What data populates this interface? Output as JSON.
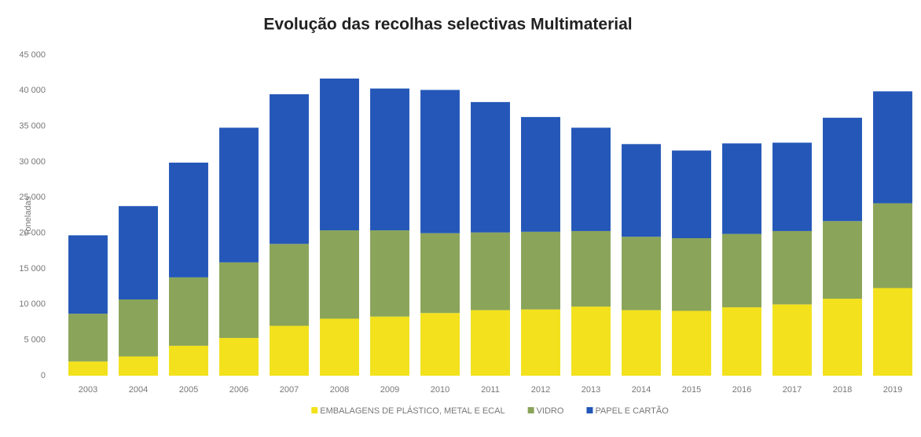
{
  "chart_data": {
    "type": "stacked_bar",
    "title": "Evolução das recolhas selectivas Multimaterial",
    "y_label": "Toneladas",
    "categories": [
      "2003",
      "2004",
      "2005",
      "2006",
      "2007",
      "2008",
      "2009",
      "2010",
      "2011",
      "2012",
      "2013",
      "2014",
      "2015",
      "2016",
      "2017",
      "2018",
      "2019"
    ],
    "series": [
      {
        "name": "EMBALAGENS DE PLÁSTICO, METAL E ECAL",
        "color": "#f2e11c",
        "values": [
          2000,
          2700,
          4200,
          5300,
          7000,
          8000,
          8300,
          8800,
          9200,
          9300,
          9700,
          9200,
          9100,
          9600,
          10000,
          10800,
          12300
        ]
      },
      {
        "name": "VIDRO",
        "color": "#8aa45a",
        "values": [
          6700,
          8000,
          9600,
          10600,
          11500,
          12400,
          12100,
          11200,
          10900,
          10900,
          10600,
          10300,
          10200,
          10300,
          10300,
          10900,
          11900
        ]
      },
      {
        "name": "PAPEL E CARTÃO",
        "color": "#2457b8",
        "values": [
          11000,
          13100,
          16100,
          18900,
          21000,
          21300,
          19900,
          20100,
          18300,
          16100,
          14500,
          13000,
          12300,
          12700,
          12400,
          14500,
          15700
        ]
      }
    ],
    "ylim": [
      0,
      45000
    ],
    "yticks": [
      0,
      {
        "value": 5000,
        "label": "5 000"
      },
      {
        "value": 10000,
        "label": "10 000"
      },
      {
        "value": 15000,
        "label": "15 000"
      },
      {
        "value": 20000,
        "label": "20 000"
      },
      {
        "value": 25000,
        "label": "25 000"
      },
      {
        "value": 30000,
        "label": "30 000"
      },
      {
        "value": 35000,
        "label": "35 000"
      },
      {
        "value": 40000,
        "label": "40 000"
      },
      {
        "value": 45000,
        "label": "45 000"
      }
    ],
    "legend": "bottom"
  }
}
